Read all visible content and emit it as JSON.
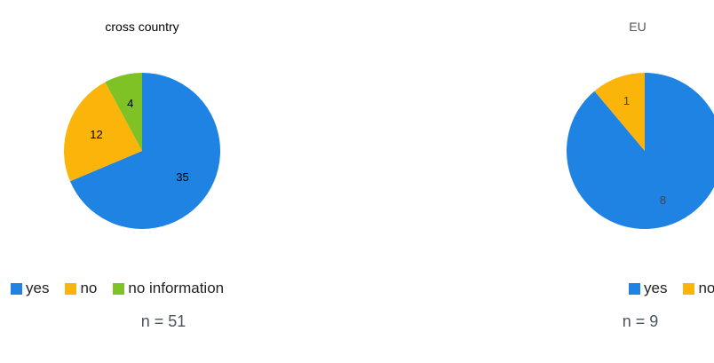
{
  "colors": {
    "yes": "#1f83e3",
    "no": "#fbb40a",
    "no_information": "#7ec225"
  },
  "chart_data": [
    {
      "type": "pie",
      "title": "cross country",
      "slices": [
        {
          "label": "yes",
          "value": 35,
          "color": "#1f83e3"
        },
        {
          "label": "no",
          "value": 12,
          "color": "#fbb40a"
        },
        {
          "label": "no information",
          "value": 4,
          "color": "#7ec225"
        }
      ],
      "legend": [
        "yes",
        "no",
        "no information"
      ],
      "legend_position": "bottom",
      "note": "n = 51"
    },
    {
      "type": "pie",
      "title": "EU",
      "slices": [
        {
          "label": "yes",
          "value": 8,
          "color": "#1f83e3"
        },
        {
          "label": "no",
          "value": 1,
          "color": "#fbb40a"
        }
      ],
      "legend": [
        "yes",
        "no"
      ],
      "legend_position": "bottom",
      "note": "n = 9"
    }
  ]
}
